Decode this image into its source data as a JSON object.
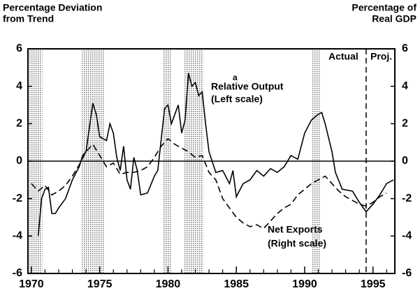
{
  "chart_data": {
    "type": "line",
    "y_label": [
      "Percentage Deviation",
      "from Trend"
    ],
    "y2_label": [
      "Percentage of",
      "Real GDP"
    ],
    "xlim": [
      1969.75,
      1996.6
    ],
    "xticks": [
      1970,
      1975,
      1980,
      1985,
      1990,
      1995
    ],
    "xminorticks": [
      1971,
      1972,
      1973,
      1974,
      1976,
      1977,
      1978,
      1979,
      1981,
      1982,
      1983,
      1984,
      1986,
      1987,
      1988,
      1989,
      1991,
      1992,
      1993,
      1994,
      1996
    ],
    "ylim": [
      -6,
      6
    ],
    "yticks": [
      -6,
      -4,
      -2,
      0,
      2,
      4,
      6
    ],
    "y2lim": [
      -6,
      6
    ],
    "y2ticks": [
      -6,
      -4,
      -2,
      0,
      2,
      4,
      6
    ],
    "shaded_periods": [
      [
        1969.8,
        1970.8
      ],
      [
        1973.7,
        1975.3
      ],
      [
        1979.6,
        1980.2
      ],
      [
        1981.2,
        1982.6
      ],
      [
        1990.5,
        1991.1
      ]
    ],
    "divider_x": 1994.5,
    "annotations": {
      "actual": "Actual",
      "proj": "Proj.",
      "footnote": "a",
      "left_scale": "(Left scale)",
      "right_scale": "(Right scale)"
    },
    "series": [
      {
        "name": "Relative Output",
        "color": "#000",
        "dash": "none",
        "x": [
          1970.5,
          1970.75,
          1971.0,
          1971.25,
          1971.5,
          1971.75,
          1972.0,
          1972.5,
          1973.0,
          1973.5,
          1973.75,
          1974.0,
          1974.25,
          1974.5,
          1974.75,
          1975.0,
          1975.5,
          1975.75,
          1976.0,
          1976.25,
          1976.5,
          1976.75,
          1977.0,
          1977.25,
          1977.5,
          1977.75,
          1978.0,
          1978.5,
          1979.0,
          1979.25,
          1979.75,
          1980.0,
          1980.25,
          1980.5,
          1980.75,
          1981.0,
          1981.25,
          1981.5,
          1981.75,
          1982.0,
          1982.25,
          1982.5,
          1982.75,
          1983.0,
          1983.5,
          1984.0,
          1984.5,
          1984.75,
          1985.0,
          1985.5,
          1986.0,
          1986.5,
          1987.0,
          1987.5,
          1988.0,
          1988.5,
          1989.0,
          1989.5,
          1990.0,
          1990.5,
          1991.0,
          1991.25,
          1991.5,
          1992.0,
          1992.25,
          1992.75,
          1993.5,
          1994.0,
          1994.5,
          1995.0,
          1995.5,
          1996.0,
          1996.5
        ],
        "values": [
          -4.0,
          -2.0,
          -1.5,
          -1.4,
          -2.8,
          -2.8,
          -2.5,
          -2.0,
          -1.0,
          -0.3,
          0.3,
          0.5,
          1.8,
          3.1,
          2.5,
          1.3,
          1.1,
          2.0,
          1.5,
          0.2,
          -0.5,
          0.8,
          -1.0,
          -1.5,
          0.2,
          -0.5,
          -1.8,
          -1.7,
          -0.8,
          -0.5,
          2.8,
          3.0,
          2.0,
          2.5,
          3.0,
          1.5,
          2.2,
          4.7,
          4.0,
          4.2,
          3.5,
          3.7,
          2.0,
          0.5,
          -0.6,
          -0.5,
          -1.2,
          -0.5,
          -1.9,
          -1.2,
          -1.0,
          -0.5,
          -0.8,
          -0.4,
          -0.6,
          -0.3,
          0.3,
          0.1,
          1.5,
          2.2,
          2.5,
          2.6,
          2.0,
          0.5,
          -0.6,
          -1.5,
          -1.6,
          -2.2,
          -2.7,
          -2.3,
          -1.8,
          -1.2,
          -1.0
        ]
      },
      {
        "name": "Net Exports",
        "color": "#000",
        "dash": "9 5",
        "axis": "y2",
        "x": [
          1970.0,
          1970.5,
          1971.0,
          1971.5,
          1972.0,
          1972.5,
          1973.0,
          1973.5,
          1974.0,
          1974.5,
          1975.0,
          1975.5,
          1976.0,
          1976.5,
          1977.0,
          1977.5,
          1978.0,
          1978.5,
          1979.0,
          1979.5,
          1980.0,
          1980.5,
          1981.0,
          1981.5,
          1982.0,
          1982.5,
          1983.0,
          1983.5,
          1984.0,
          1984.5,
          1985.0,
          1985.5,
          1986.0,
          1986.5,
          1987.0,
          1987.5,
          1988.0,
          1988.5,
          1989.0,
          1989.5,
          1990.0,
          1990.5,
          1991.0,
          1991.5,
          1992.0,
          1992.5,
          1993.0,
          1993.5,
          1994.0,
          1994.5,
          1995.0,
          1995.5,
          1996.0
        ],
        "values": [
          -1.2,
          -1.6,
          -1.3,
          -1.8,
          -1.6,
          -1.3,
          -0.8,
          -0.2,
          0.5,
          0.9,
          0.3,
          -0.3,
          -0.1,
          -0.7,
          -0.6,
          -0.6,
          -0.5,
          -0.3,
          0.2,
          0.8,
          1.2,
          0.9,
          0.7,
          0.5,
          0.2,
          0.3,
          -0.6,
          -1.0,
          -2.0,
          -2.5,
          -3.0,
          -3.3,
          -3.5,
          -3.4,
          -3.6,
          -3.2,
          -2.8,
          -2.5,
          -2.3,
          -1.8,
          -1.5,
          -1.2,
          -1.0,
          -0.8,
          -1.2,
          -1.6,
          -1.9,
          -2.1,
          -2.3,
          -2.4,
          -2.2,
          -1.9,
          -1.7
        ]
      }
    ]
  }
}
